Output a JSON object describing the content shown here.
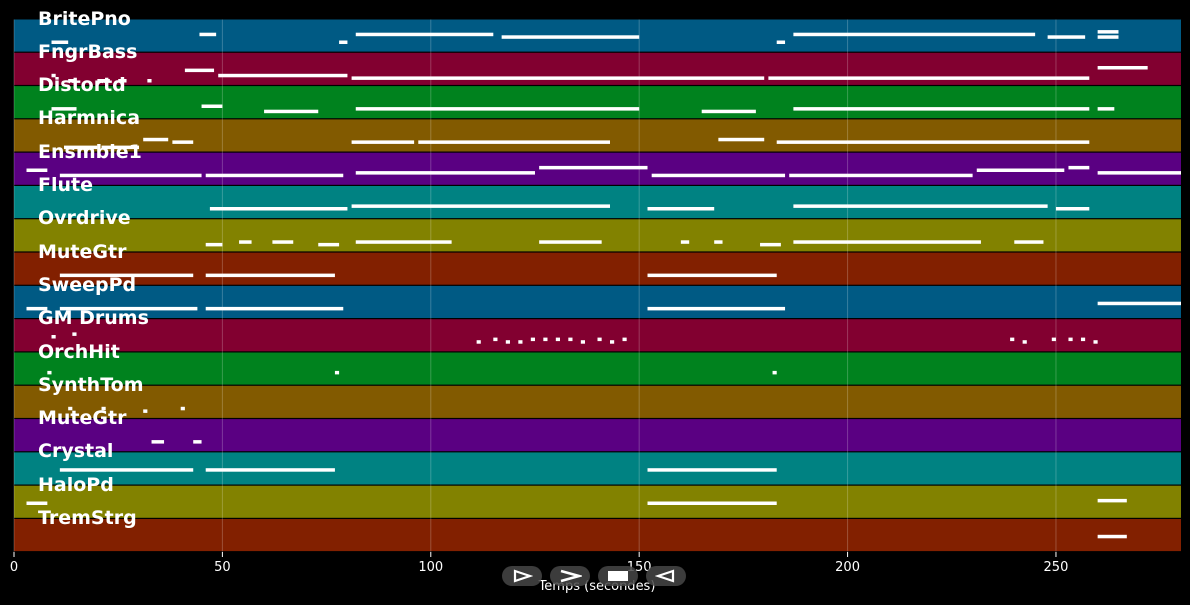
{
  "chart_data": {
    "type": "piano-roll",
    "title": "",
    "xlabel": "Temps (secondes)",
    "ylabel": "",
    "xlim": [
      0,
      280
    ],
    "xticks": [
      0,
      50,
      100,
      150,
      200,
      250
    ],
    "grid": true,
    "tracks": [
      {
        "name": "BritePno",
        "color": "#005a84",
        "notes": [
          [
            9,
            13,
            5
          ],
          [
            44.5,
            48.5,
            2
          ],
          [
            78,
            80,
            5
          ],
          [
            82,
            115,
            2
          ],
          [
            117,
            150,
            3
          ],
          [
            183,
            185,
            5
          ],
          [
            187,
            245,
            2
          ],
          [
            248,
            257,
            3
          ],
          [
            260,
            265,
            1
          ],
          [
            260,
            265,
            3
          ]
        ]
      },
      {
        "name": "FngrBass",
        "color": "#820030",
        "notes": [
          [
            9,
            10,
            5
          ],
          [
            13,
            15,
            7
          ],
          [
            20,
            23,
            7
          ],
          [
            25,
            27,
            7
          ],
          [
            32,
            33,
            7
          ],
          [
            41,
            48,
            3
          ],
          [
            49,
            80,
            5
          ],
          [
            81,
            180,
            6
          ],
          [
            181,
            258,
            6
          ],
          [
            260,
            272,
            2
          ]
        ]
      },
      {
        "name": "Distortd",
        "color": "#00821e",
        "notes": [
          [
            9,
            15,
            5
          ],
          [
            45,
            50,
            4
          ],
          [
            60,
            73,
            6
          ],
          [
            82,
            150,
            5
          ],
          [
            165,
            178,
            6
          ],
          [
            187,
            258,
            5
          ],
          [
            260,
            264,
            5
          ]
        ]
      },
      {
        "name": "Harmnica",
        "color": "#825a00",
        "notes": [
          [
            12,
            20,
            7
          ],
          [
            21,
            30,
            7
          ],
          [
            31,
            37,
            4
          ],
          [
            38,
            43,
            5
          ],
          [
            81,
            96,
            5
          ],
          [
            97,
            143,
            5
          ],
          [
            169,
            180,
            4
          ],
          [
            183,
            258,
            5
          ]
        ]
      },
      {
        "name": "Ensmble1",
        "color": "#5a0082",
        "notes": [
          [
            3,
            8,
            3
          ],
          [
            11,
            45,
            5
          ],
          [
            46,
            79,
            5
          ],
          [
            82,
            125,
            4
          ],
          [
            126,
            152,
            2
          ],
          [
            153,
            185,
            5
          ],
          [
            186,
            230,
            5
          ],
          [
            231,
            252,
            3
          ],
          [
            253,
            258,
            2
          ],
          [
            260,
            280,
            4
          ]
        ]
      },
      {
        "name": "Flute",
        "color": "#008282",
        "notes": [
          [
            47,
            80,
            5
          ],
          [
            81,
            143,
            4
          ],
          [
            152,
            168,
            5
          ],
          [
            187,
            248,
            4
          ],
          [
            250,
            258,
            5
          ]
        ]
      },
      {
        "name": "Ovrdrive",
        "color": "#828200",
        "notes": [
          [
            46,
            50,
            6
          ],
          [
            54,
            57,
            5
          ],
          [
            62,
            67,
            5
          ],
          [
            73,
            78,
            6
          ],
          [
            82,
            105,
            5
          ],
          [
            126,
            141,
            5
          ],
          [
            160,
            162,
            5
          ],
          [
            168,
            170,
            5
          ],
          [
            179,
            184,
            6
          ],
          [
            187,
            232,
            5
          ],
          [
            240,
            247,
            5
          ]
        ]
      },
      {
        "name": "MuteGtr",
        "color": "#822000",
        "notes": [
          [
            11,
            43,
            5
          ],
          [
            46,
            77,
            5
          ],
          [
            152,
            183,
            5
          ]
        ]
      },
      {
        "name": "SweepPd",
        "color": "#005a84",
        "notes": [
          [
            3,
            8,
            5
          ],
          [
            11,
            44,
            5
          ],
          [
            46,
            79,
            5
          ],
          [
            152,
            185,
            5
          ],
          [
            260,
            280,
            3
          ]
        ]
      },
      {
        "name": "GM Drums",
        "color": "#820030",
        "notes": [
          [
            9,
            10,
            3
          ],
          [
            14,
            15,
            2
          ],
          [
            111,
            112,
            5
          ],
          [
            115,
            116,
            4
          ],
          [
            118,
            119,
            5
          ],
          [
            121,
            122,
            5
          ],
          [
            124,
            125,
            4
          ],
          [
            127,
            128,
            4
          ],
          [
            130,
            131,
            4
          ],
          [
            133,
            134,
            4
          ],
          [
            136,
            137,
            5
          ],
          [
            140,
            141,
            4
          ],
          [
            143,
            144,
            5
          ],
          [
            146,
            147,
            4
          ],
          [
            239,
            240,
            4
          ],
          [
            242,
            243,
            5
          ],
          [
            249,
            250,
            4
          ],
          [
            253,
            254,
            4
          ],
          [
            256,
            257,
            4
          ],
          [
            259,
            260,
            5
          ]
        ]
      },
      {
        "name": "OrchHit",
        "color": "#00821e",
        "notes": [
          [
            8,
            9,
            4
          ],
          [
            77,
            78,
            4
          ],
          [
            182,
            183,
            4
          ]
        ]
      },
      {
        "name": "SynthTom",
        "color": "#825a00",
        "notes": [
          [
            13,
            14,
            5
          ],
          [
            21,
            22,
            5
          ],
          [
            31,
            32,
            6
          ],
          [
            40,
            41,
            5
          ]
        ]
      },
      {
        "name": "MuteGtr",
        "color": "#5a0082",
        "notes": [
          [
            33,
            36,
            5
          ],
          [
            43,
            45,
            5
          ]
        ]
      },
      {
        "name": "Crystal",
        "color": "#008282",
        "notes": [
          [
            11,
            43,
            3
          ],
          [
            46,
            77,
            3
          ],
          [
            152,
            183,
            3
          ]
        ]
      },
      {
        "name": "HaloPd",
        "color": "#828200",
        "notes": [
          [
            3,
            8,
            3
          ],
          [
            152,
            183,
            3
          ],
          [
            260,
            267,
            2
          ]
        ]
      },
      {
        "name": "TremStrg",
        "color": "#822000",
        "notes": [
          [
            260,
            267,
            3
          ]
        ]
      }
    ]
  },
  "controls": [
    {
      "name": "rewind-button",
      "icon": "rewind-icon"
    },
    {
      "name": "play-button",
      "icon": "play-icon"
    },
    {
      "name": "stop-button",
      "icon": "stop-icon"
    },
    {
      "name": "back-button",
      "icon": "back-icon"
    }
  ]
}
